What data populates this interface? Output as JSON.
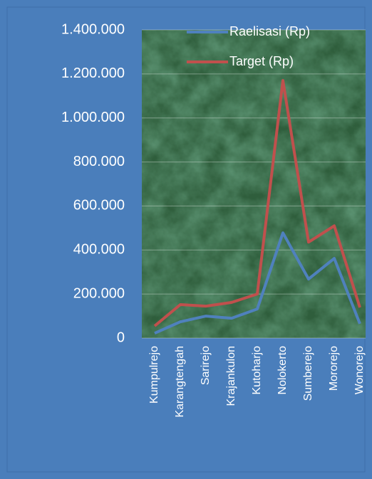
{
  "chart_data": {
    "type": "line",
    "categories": [
      "Kumpulrejo",
      "Karangtengah",
      "Sarirejo",
      "Krajankulon",
      "Kutoharjo",
      "Nolokerto",
      "Sumberejo",
      "Mororejo",
      "Wonorejo"
    ],
    "series": [
      {
        "name": "Raelisasi (Rp)",
        "color": "#4f81bd",
        "values": [
          22000,
          74000,
          100000,
          90000,
          132000,
          478000,
          268000,
          362000,
          65000
        ]
      },
      {
        "name": "Target (Rp)",
        "color": "#c0504d",
        "values": [
          55000,
          152000,
          145000,
          162000,
          200000,
          1170000,
          436000,
          510000,
          139000
        ]
      }
    ],
    "ylim": [
      0,
      1400000
    ],
    "yticks": [
      0,
      {
        "value": 200000,
        "label": "200.000"
      },
      {
        "value": 400000,
        "label": "400.000"
      },
      {
        "value": 600000,
        "label": "600.000"
      },
      {
        "value": 800000,
        "label": "800.000"
      },
      {
        "value": 1000000,
        "label": "1.000.000"
      },
      {
        "value": 1200000,
        "label": "1.200.000"
      },
      {
        "value": 1400000,
        "label": "1.400.000"
      }
    ],
    "grid": true,
    "legend": "top"
  }
}
